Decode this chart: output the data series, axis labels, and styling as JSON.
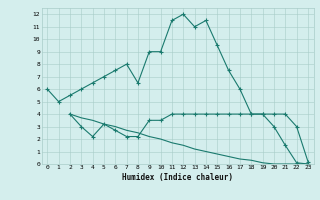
{
  "line1_x": [
    0,
    1,
    2,
    3,
    4,
    5,
    6,
    7,
    8,
    9,
    10,
    11,
    12,
    13,
    14,
    15,
    16,
    17,
    18,
    19,
    20,
    21,
    22,
    23
  ],
  "line1_y": [
    6.0,
    5.0,
    5.5,
    6.0,
    6.5,
    7.0,
    7.5,
    8.0,
    6.5,
    9.0,
    9.0,
    11.5,
    12.0,
    11.0,
    11.5,
    9.5,
    7.5,
    6.0,
    4.0,
    4.0,
    3.0,
    1.5,
    0.1,
    0.0
  ],
  "line2_x": [
    2,
    3,
    4,
    5,
    6,
    7,
    8,
    9,
    10,
    11,
    12,
    13,
    14,
    15,
    16,
    17,
    18,
    19,
    20,
    21,
    22,
    23
  ],
  "line2_y": [
    4.0,
    3.0,
    2.2,
    3.2,
    2.7,
    2.2,
    2.2,
    3.5,
    3.5,
    4.0,
    4.0,
    4.0,
    4.0,
    4.0,
    4.0,
    4.0,
    4.0,
    4.0,
    4.0,
    4.0,
    3.0,
    0.2
  ],
  "line3_x": [
    2,
    3,
    4,
    5,
    6,
    7,
    8,
    9,
    10,
    11,
    12,
    13,
    14,
    15,
    16,
    17,
    18,
    19,
    20,
    21,
    22,
    23
  ],
  "line3_y": [
    4.0,
    3.7,
    3.5,
    3.2,
    3.0,
    2.7,
    2.5,
    2.2,
    2.0,
    1.7,
    1.5,
    1.2,
    1.0,
    0.8,
    0.6,
    0.4,
    0.3,
    0.1,
    0.0,
    0.0,
    0.0,
    0.0
  ],
  "line_color": "#1a7a6e",
  "bg_color": "#d4eeed",
  "grid_color": "#a8ccc8",
  "xlabel": "Humidex (Indice chaleur)",
  "ylim": [
    0,
    12.5
  ],
  "xlim": [
    -0.5,
    23.5
  ],
  "yticks": [
    0,
    1,
    2,
    3,
    4,
    5,
    6,
    7,
    8,
    9,
    10,
    11,
    12
  ],
  "xticks": [
    0,
    1,
    2,
    3,
    4,
    5,
    6,
    7,
    8,
    9,
    10,
    11,
    12,
    13,
    14,
    15,
    16,
    17,
    18,
    19,
    20,
    21,
    22,
    23
  ]
}
